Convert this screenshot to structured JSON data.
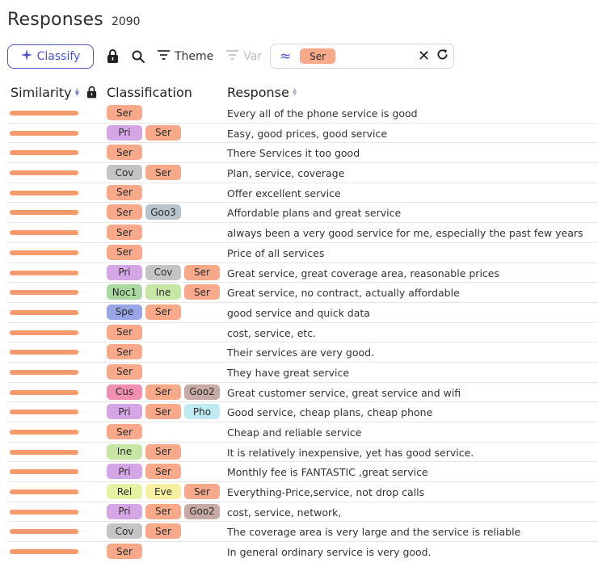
{
  "header": {
    "title": "Responses",
    "count": "2090"
  },
  "toolbar": {
    "classify_label": "Classify",
    "theme_label": "Theme",
    "var_label": "Var",
    "filter_chip": "Ser",
    "icons": [
      "sparkle-icon",
      "lock-icon",
      "search-icon",
      "filter-lines-icon",
      "approx-icon",
      "close-icon",
      "refresh-icon"
    ]
  },
  "columns": {
    "similarity": "Similarity",
    "classification": "Classification",
    "response": "Response"
  },
  "colors": {
    "accent": "#4a55c9",
    "bar": "#f49a6c",
    "tag_colors": {
      "Ser": "#f7a98a",
      "Pri": "#d5a6e6",
      "Cov": "#c4c4c4",
      "Goo3": "#b9c3cb",
      "Noc1": "#a9d9a1",
      "Ine": "#c7e6a3",
      "Spe": "#98a6e8",
      "Cus": "#f08fb2",
      "Goo2": "#c6aaa3",
      "Pho": "#bfeaf2",
      "Rel": "#e6f2a1",
      "Eve": "#f6f0a0"
    }
  },
  "rows": [
    {
      "tags": [
        "Ser"
      ],
      "response": "Every all of the phone service is good"
    },
    {
      "tags": [
        "Pri",
        "Ser"
      ],
      "response": "Easy, good prices, good service"
    },
    {
      "tags": [
        "Ser"
      ],
      "response": "There Services it too good"
    },
    {
      "tags": [
        "Cov",
        "Ser"
      ],
      "response": "Plan, service, coverage"
    },
    {
      "tags": [
        "Ser"
      ],
      "response": "Offer excellent service"
    },
    {
      "tags": [
        "Ser",
        "Goo3"
      ],
      "response": "Affordable plans and great service"
    },
    {
      "tags": [
        "Ser"
      ],
      "response": "always been a very good service for me, especially the past few years"
    },
    {
      "tags": [
        "Ser"
      ],
      "response": "Price of all services"
    },
    {
      "tags": [
        "Pri",
        "Cov",
        "Ser"
      ],
      "response": "Great service, great coverage area, reasonable prices"
    },
    {
      "tags": [
        "Noc1",
        "Ine",
        "Ser"
      ],
      "response": "Great service, no contract, actually affordable"
    },
    {
      "tags": [
        "Spe",
        "Ser"
      ],
      "response": "good service and quick data"
    },
    {
      "tags": [
        "Ser"
      ],
      "response": "cost, service, etc."
    },
    {
      "tags": [
        "Ser"
      ],
      "response": "Their services are very good."
    },
    {
      "tags": [
        "Ser"
      ],
      "response": "They have great service"
    },
    {
      "tags": [
        "Cus",
        "Ser",
        "Goo2"
      ],
      "response": "Great customer service, great service and wifi"
    },
    {
      "tags": [
        "Pri",
        "Ser",
        "Pho"
      ],
      "response": "Good service, cheap plans, cheap phone"
    },
    {
      "tags": [
        "Ser"
      ],
      "response": "Cheap and reliable service"
    },
    {
      "tags": [
        "Ine",
        "Ser"
      ],
      "response": "It is relatively inexpensive, yet has good service."
    },
    {
      "tags": [
        "Pri",
        "Ser"
      ],
      "response": "Monthly fee is FANTASTIC ,great service"
    },
    {
      "tags": [
        "Rel",
        "Eve",
        "Ser"
      ],
      "response": "Everything-Price,service, not drop calls"
    },
    {
      "tags": [
        "Pri",
        "Ser",
        "Goo2"
      ],
      "response": "cost, service, network,"
    },
    {
      "tags": [
        "Cov",
        "Ser"
      ],
      "response": "The coverage area is very large and the service is reliable"
    },
    {
      "tags": [
        "Ser"
      ],
      "response": "In general ordinary service is very good."
    }
  ]
}
